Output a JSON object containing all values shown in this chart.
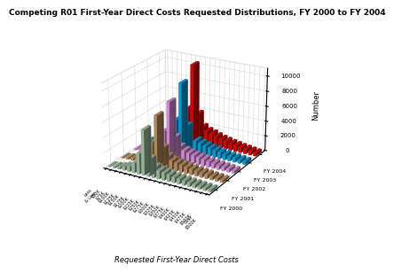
{
  "title": "Competing R01 First-Year Direct Costs Requested Distributions, FY 2000 to FY 2004",
  "xlabel": "Requested First-Year Direct Costs",
  "zlabel": "Number",
  "years": [
    "FY 2004",
    "FY 2003",
    "FY 2002",
    "FY 2001",
    "FY 2000"
  ],
  "year_colors": [
    "#EE0000",
    "#00AAEE",
    "#EE99EE",
    "#CC9966",
    "#AACCAA"
  ],
  "cost_bins": [
    "Less\n& Low",
    "$50K",
    "$75K",
    "$100K",
    "$125K",
    "$150K",
    "$175K",
    "$200K",
    "$225K",
    "$250K",
    "$275K",
    "$300K",
    "$325K",
    "$350K",
    "$375K",
    "$400K",
    "$425K",
    "$450K",
    "$475K",
    "$500K",
    "Over\n$500K"
  ],
  "data": {
    "FY 2004": [
      100,
      250,
      450,
      750,
      1000,
      2200,
      4500,
      10500,
      4000,
      2300,
      1900,
      1700,
      1450,
      1250,
      1100,
      950,
      820,
      700,
      600,
      500,
      400
    ],
    "FY 2003": [
      90,
      220,
      380,
      680,
      920,
      2000,
      4000,
      9000,
      3400,
      2000,
      1650,
      1450,
      1250,
      1080,
      970,
      820,
      710,
      610,
      525,
      445,
      360
    ],
    "FY 2002": [
      80,
      190,
      330,
      610,
      840,
      1750,
      3500,
      7500,
      2900,
      1750,
      1420,
      1230,
      1100,
      960,
      860,
      735,
      640,
      555,
      475,
      405,
      310
    ],
    "FY 2001": [
      70,
      165,
      290,
      540,
      760,
      1520,
      3100,
      6700,
      2560,
      1540,
      1230,
      1070,
      960,
      835,
      750,
      650,
      570,
      500,
      428,
      368,
      285
    ],
    "FY 2000": [
      60,
      140,
      250,
      470,
      680,
      1300,
      2700,
      5900,
      2250,
      1320,
      1070,
      940,
      835,
      715,
      655,
      570,
      490,
      430,
      368,
      316,
      258
    ]
  },
  "zlim": [
    0,
    11000
  ],
  "zticks": [
    0,
    2000,
    4000,
    6000,
    8000,
    10000
  ],
  "background_color": "#FFFFFF",
  "title_fontsize": 6.5,
  "tick_fontsize": 5,
  "label_fontsize": 6,
  "elev": 22,
  "azim": -60
}
